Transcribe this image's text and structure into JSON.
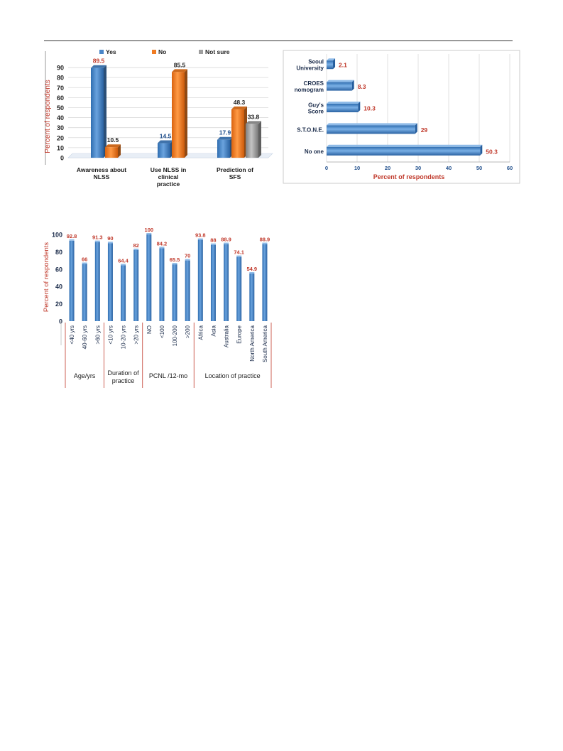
{
  "chart_data": [
    {
      "type": "bar",
      "ylabel": "Percent of respondents",
      "ylim": [
        0,
        90
      ],
      "yticks": [
        0,
        10,
        20,
        30,
        40,
        50,
        60,
        70,
        80,
        90
      ],
      "legend_position": "top",
      "categories": [
        "Awareness about NLSS",
        "Use NLSS in clinical practice",
        "Prediction of SFS"
      ],
      "series": [
        {
          "name": "Yes",
          "color": "#4a86c8",
          "values": [
            89.5,
            14.5,
            17.9
          ]
        },
        {
          "name": "No",
          "color": "#f07b22",
          "values": [
            10.5,
            85.5,
            48.3
          ]
        },
        {
          "name": "Not sure",
          "color": "#9e9e9e",
          "values": [
            null,
            null,
            33.8
          ]
        }
      ]
    },
    {
      "type": "bar",
      "orientation": "horizontal",
      "xlabel": "Percent of respondents",
      "xlim": [
        0,
        60
      ],
      "xticks": [
        0,
        10,
        20,
        30,
        40,
        50,
        60
      ],
      "categories": [
        "Seoul University",
        "CROES nomogram",
        "Guy's Score",
        "S.T.O.N.E.",
        "No one"
      ],
      "values": [
        2.1,
        8.3,
        10.3,
        29,
        50.3
      ],
      "color": "#4a86c8"
    },
    {
      "type": "bar",
      "ylabel": "Percent of respondents",
      "ylim": [
        0,
        100
      ],
      "yticks": [
        0,
        20,
        40,
        60,
        80,
        100
      ],
      "categories": [
        "<40 yrs",
        "40-60 yrs",
        ">60 yrs",
        "<10 yrs",
        "10-20 yrs",
        ">20 yrs",
        "NO",
        "<100",
        "100-200",
        ">200",
        "Africa",
        "Asia",
        "Australia",
        "Europe",
        "North America",
        "South America"
      ],
      "values": [
        92.8,
        66,
        91.3,
        90,
        64.4,
        82,
        100,
        84.2,
        65.5,
        70,
        93.8,
        88,
        88.9,
        74.1,
        54.9,
        88.9
      ],
      "groups": [
        {
          "label": "Age/yrs",
          "size": 3
        },
        {
          "label": "Duration of practice",
          "size": 3
        },
        {
          "label": "PCNL /12-mo",
          "size": 4
        },
        {
          "label": "Location of practice",
          "size": 6
        }
      ],
      "color": "#4a86c8"
    }
  ]
}
